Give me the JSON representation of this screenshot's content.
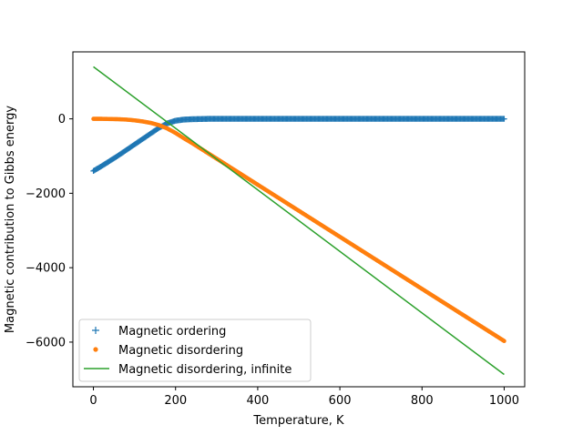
{
  "chart_data": {
    "type": "line",
    "title": "",
    "xlabel": "Temperature, K",
    "ylabel": "Magnetic contribution to Gibbs energy",
    "xlim": [
      -50,
      1050
    ],
    "ylim": [
      -7200,
      1800
    ],
    "xticks": [
      0,
      200,
      400,
      600,
      800,
      1000
    ],
    "yticks": [
      -6000,
      -4000,
      -2000,
      0
    ],
    "xtick_labels": [
      "0",
      "200",
      "400",
      "600",
      "800",
      "1000"
    ],
    "ytick_labels": [
      "−6000",
      "−4000",
      "−2000",
      "0"
    ],
    "grid": false,
    "legend_position": "lower-left",
    "series": [
      {
        "name": "Magnetic ordering",
        "marker": "plus",
        "color": "#1f77b4",
        "x": [
          0,
          20,
          40,
          60,
          80,
          100,
          120,
          140,
          160,
          180,
          200,
          220,
          240,
          260,
          280,
          300,
          350,
          400,
          450,
          500,
          550,
          600,
          650,
          700,
          750,
          800,
          850,
          900,
          950,
          1000
        ],
        "y": [
          -1400,
          -1270,
          -1130,
          -990,
          -840,
          -690,
          -540,
          -390,
          -240,
          -120,
          -50,
          -20,
          -10,
          -5,
          0,
          0,
          0,
          0,
          0,
          0,
          0,
          0,
          0,
          0,
          0,
          0,
          0,
          0,
          0,
          0
        ]
      },
      {
        "name": "Magnetic disordering",
        "marker": "dot",
        "color": "#ff7f0e",
        "x": [
          0,
          20,
          40,
          60,
          80,
          100,
          120,
          140,
          160,
          180,
          200,
          220,
          240,
          260,
          280,
          300,
          350,
          400,
          450,
          500,
          550,
          600,
          650,
          700,
          750,
          800,
          850,
          900,
          950,
          1000
        ],
        "y": [
          0,
          0,
          -5,
          -10,
          -20,
          -40,
          -70,
          -110,
          -170,
          -260,
          -380,
          -520,
          -650,
          -790,
          -930,
          -1070,
          -1420,
          -1770,
          -2120,
          -2470,
          -2820,
          -3170,
          -3520,
          -3870,
          -4220,
          -4570,
          -4920,
          -5270,
          -5620,
          -5970
        ]
      },
      {
        "name": "Magnetic disordering, infinite",
        "marker": "line",
        "color": "#2ca02c",
        "x": [
          0,
          1000
        ],
        "y": [
          1400,
          -6870
        ]
      }
    ]
  }
}
